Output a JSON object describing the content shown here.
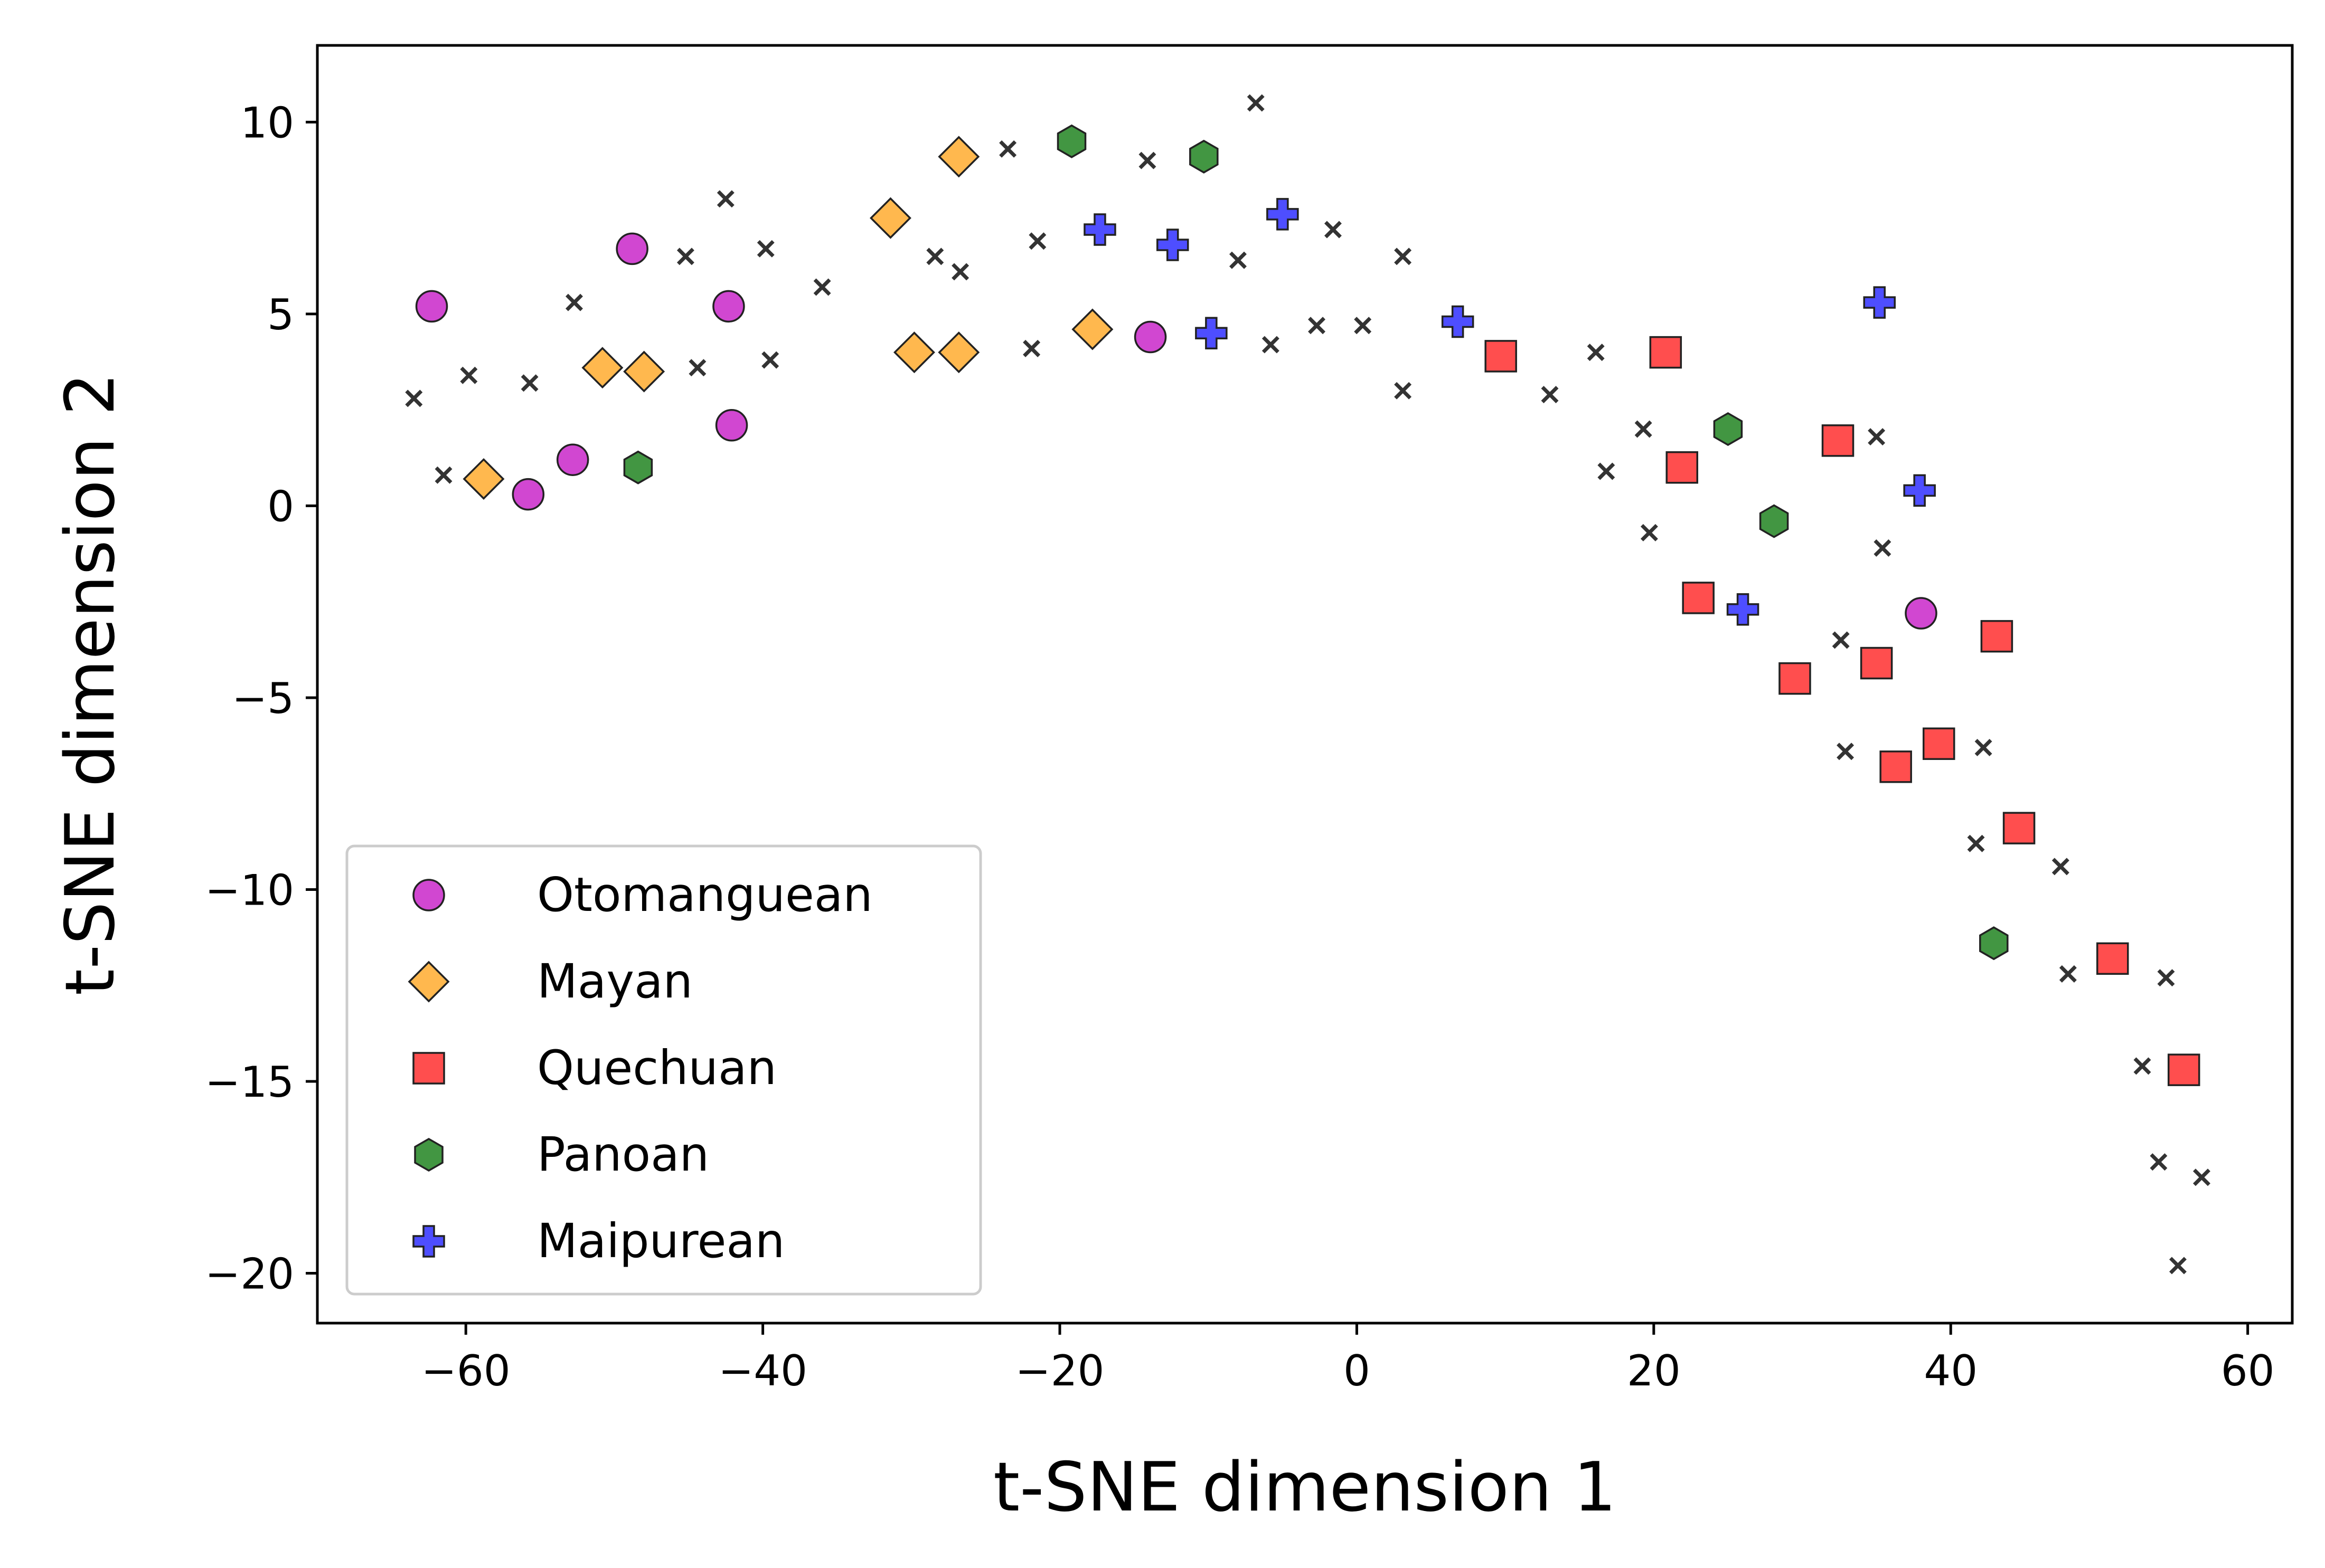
{
  "chart_data": {
    "type": "scatter",
    "title": "",
    "xlabel": "t-SNE dimension 1",
    "ylabel": "t-SNE dimension 2",
    "xlim": [
      -70,
      63
    ],
    "ylim": [
      -21.3,
      12
    ],
    "xticks": [
      -60,
      -40,
      -20,
      0,
      20,
      40,
      60
    ],
    "yticks": [
      -20,
      -15,
      -10,
      -5,
      0,
      5,
      10
    ],
    "xtick_labels": [
      "−60",
      "−40",
      "−20",
      "0",
      "20",
      "40",
      "60"
    ],
    "ytick_labels": [
      "−20",
      "−15",
      "−10",
      "−5",
      "0",
      "5",
      "10"
    ],
    "grid": false,
    "legend_position": "lower-left",
    "series": [
      {
        "name": "Otomanguean",
        "marker": "circle",
        "color": "#cc33cc",
        "points": [
          [
            -62.3,
            5.2
          ],
          [
            -48.8,
            6.7
          ],
          [
            -42.3,
            5.2
          ],
          [
            -42.1,
            2.1
          ],
          [
            -52.8,
            1.2
          ],
          [
            -55.8,
            0.3
          ],
          [
            -13.9,
            4.4
          ],
          [
            38.0,
            -2.8
          ]
        ]
      },
      {
        "name": "Mayan",
        "marker": "diamond",
        "color": "#ffb03b",
        "points": [
          [
            -26.8,
            9.1
          ],
          [
            -31.4,
            7.5
          ],
          [
            -50.8,
            3.6
          ],
          [
            -48.0,
            3.5
          ],
          [
            -29.8,
            4.0
          ],
          [
            -26.8,
            4.0
          ],
          [
            -17.8,
            4.6
          ],
          [
            -58.8,
            0.7
          ]
        ]
      },
      {
        "name": "Quechuan",
        "marker": "square",
        "color": "#ff3b3b",
        "points": [
          [
            9.7,
            3.9
          ],
          [
            20.8,
            4.0
          ],
          [
            21.9,
            1.0
          ],
          [
            32.4,
            1.7
          ],
          [
            23.0,
            -2.4
          ],
          [
            29.5,
            -4.5
          ],
          [
            35.0,
            -4.1
          ],
          [
            43.1,
            -3.4
          ],
          [
            36.3,
            -6.8
          ],
          [
            39.2,
            -6.2
          ],
          [
            44.6,
            -8.4
          ],
          [
            50.9,
            -11.8
          ],
          [
            55.7,
            -14.7
          ]
        ]
      },
      {
        "name": "Panoan",
        "marker": "hexagon",
        "color": "#2e8b2e",
        "points": [
          [
            -19.2,
            9.5
          ],
          [
            -10.3,
            9.1
          ],
          [
            -48.4,
            1.0
          ],
          [
            25.0,
            2.0
          ],
          [
            28.1,
            -0.4
          ],
          [
            42.9,
            -11.4
          ]
        ]
      },
      {
        "name": "Maipurean",
        "marker": "plus",
        "color": "#3b3bff",
        "points": [
          [
            -17.3,
            7.2
          ],
          [
            -12.4,
            6.8
          ],
          [
            -5.0,
            7.6
          ],
          [
            -9.8,
            4.5
          ],
          [
            6.8,
            4.8
          ],
          [
            35.2,
            5.3
          ],
          [
            37.9,
            0.4
          ],
          [
            26.0,
            -2.7
          ]
        ]
      },
      {
        "name": "",
        "marker": "x",
        "color": "#333333",
        "points": [
          [
            -63.5,
            2.8
          ],
          [
            -61.5,
            0.8
          ],
          [
            -59.8,
            3.4
          ],
          [
            -55.7,
            3.2
          ],
          [
            -52.7,
            5.3
          ],
          [
            -45.2,
            6.5
          ],
          [
            -44.4,
            3.6
          ],
          [
            -42.5,
            8.0
          ],
          [
            -39.8,
            6.7
          ],
          [
            -39.5,
            3.8
          ],
          [
            -36.0,
            5.7
          ],
          [
            -28.4,
            6.5
          ],
          [
            -26.7,
            6.1
          ],
          [
            -23.5,
            9.3
          ],
          [
            -21.9,
            4.1
          ],
          [
            -21.5,
            6.9
          ],
          [
            -14.1,
            9.0
          ],
          [
            -8.0,
            6.4
          ],
          [
            -6.8,
            10.5
          ],
          [
            -5.8,
            4.2
          ],
          [
            -2.7,
            4.7
          ],
          [
            -1.6,
            7.2
          ],
          [
            0.4,
            4.7
          ],
          [
            3.1,
            6.5
          ],
          [
            3.1,
            3.0
          ],
          [
            13.0,
            2.9
          ],
          [
            16.1,
            4.0
          ],
          [
            16.8,
            0.9
          ],
          [
            19.3,
            2.0
          ],
          [
            19.7,
            -0.7
          ],
          [
            35.0,
            1.8
          ],
          [
            35.4,
            -1.1
          ],
          [
            32.6,
            -3.5
          ],
          [
            32.9,
            -6.4
          ],
          [
            42.2,
            -6.3
          ],
          [
            41.7,
            -8.8
          ],
          [
            47.4,
            -9.4
          ],
          [
            47.9,
            -12.2
          ],
          [
            54.5,
            -12.3
          ],
          [
            52.9,
            -14.6
          ],
          [
            54.0,
            -17.1
          ],
          [
            56.9,
            -17.5
          ],
          [
            55.3,
            -19.8
          ]
        ]
      }
    ]
  }
}
